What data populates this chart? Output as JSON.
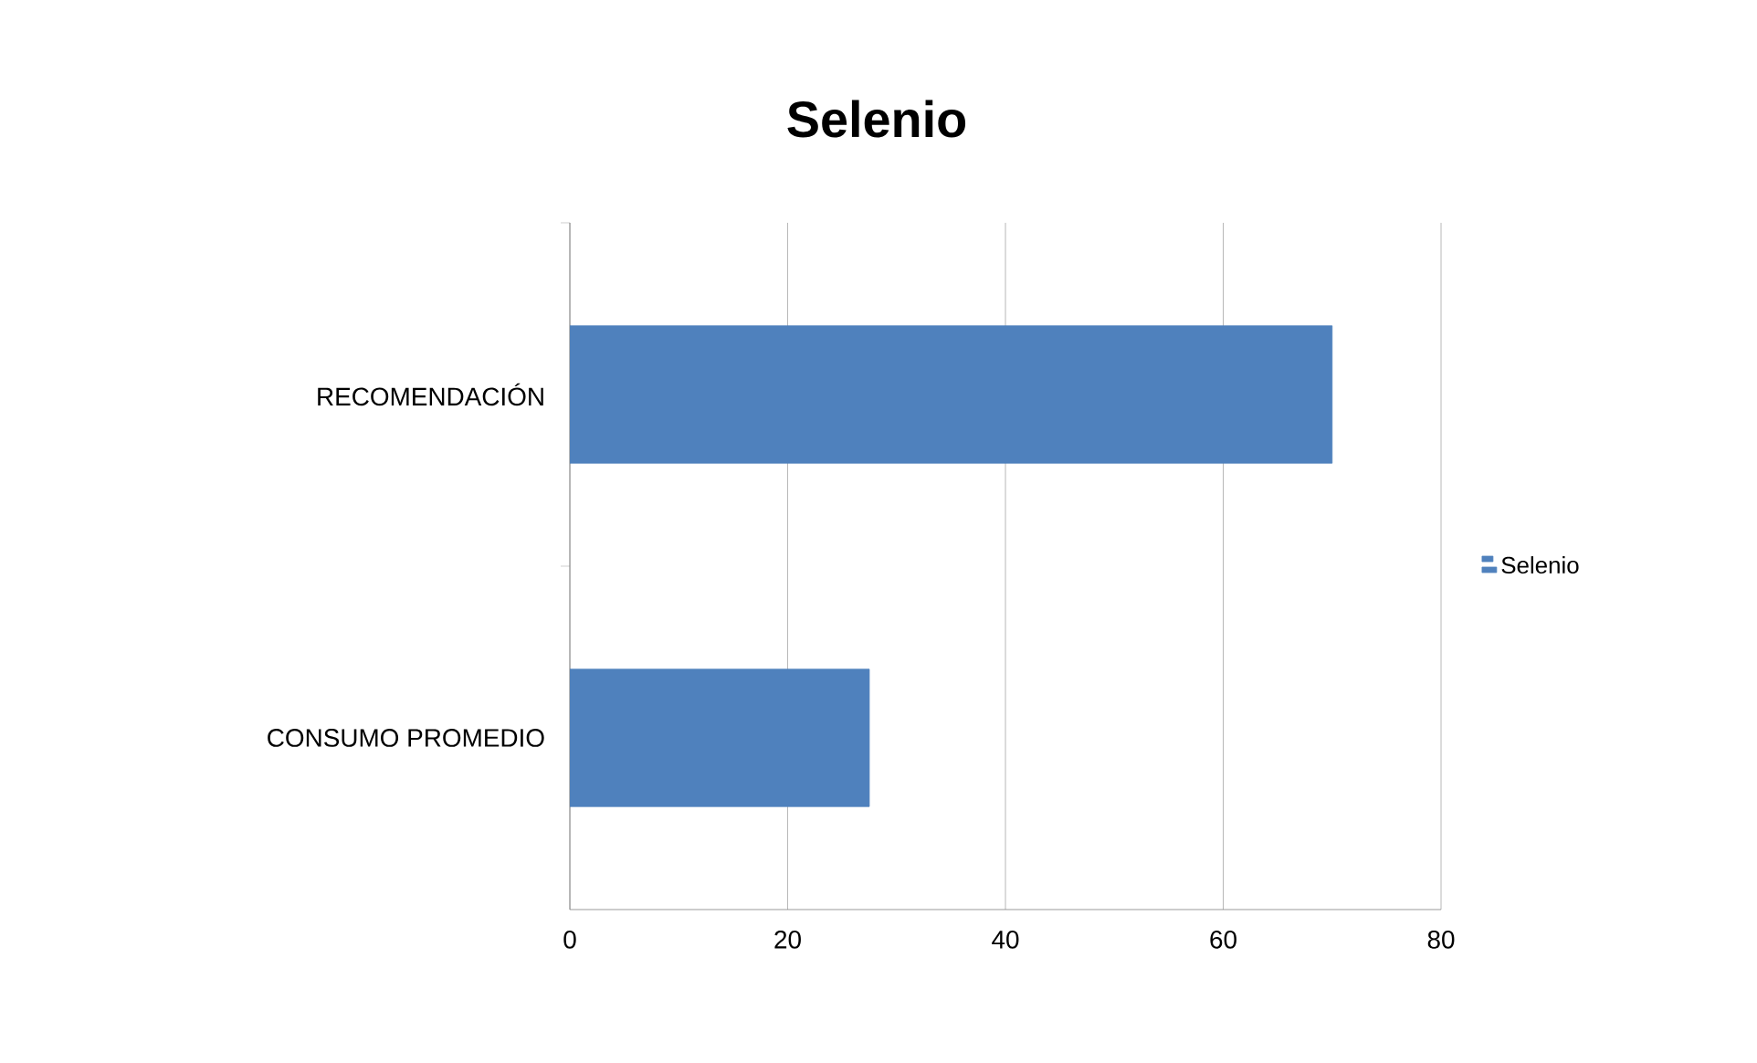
{
  "chart_data": {
    "type": "bar",
    "orientation": "horizontal",
    "title": "Selenio",
    "categories": [
      "RECOMENDACIÓN",
      "CONSUMO PROMEDIO"
    ],
    "series": [
      {
        "name": "Selenio",
        "color": "#4f81bd",
        "values": [
          70,
          27.5
        ]
      }
    ],
    "xlim": [
      0,
      80
    ],
    "xticks": [
      0,
      20,
      40,
      60,
      80
    ],
    "grid": "x",
    "legend": "right"
  }
}
